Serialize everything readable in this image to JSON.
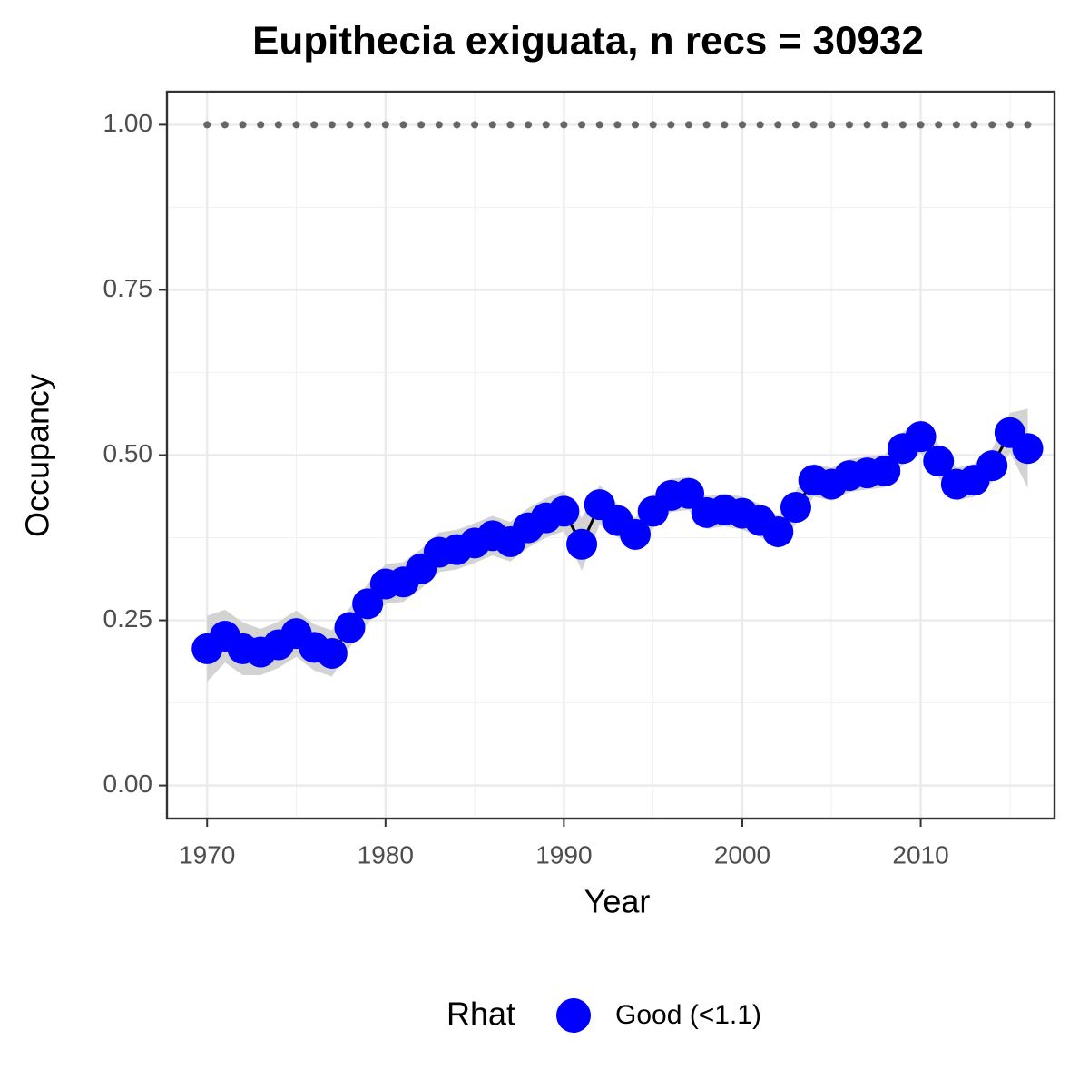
{
  "chart_data": {
    "type": "line",
    "title": "Eupithecia exiguata, n recs = 30932",
    "x_label": "Year",
    "y_label": "Occupancy",
    "legend_title": "Rhat",
    "legend_position": "bottom",
    "x": [
      1970,
      1971,
      1972,
      1973,
      1974,
      1975,
      1976,
      1977,
      1978,
      1979,
      1980,
      1981,
      1982,
      1983,
      1984,
      1985,
      1986,
      1987,
      1988,
      1989,
      1990,
      1991,
      1992,
      1993,
      1994,
      1995,
      1996,
      1997,
      1998,
      1999,
      2000,
      2001,
      2002,
      2003,
      2004,
      2005,
      2006,
      2007,
      2008,
      2009,
      2010,
      2011,
      2012,
      2013,
      2014,
      2015,
      2016
    ],
    "series": [
      {
        "name": "Good (<1.1)",
        "color": "#0000ff",
        "line_color": "#000000",
        "values": [
          0.207,
          0.226,
          0.207,
          0.202,
          0.213,
          0.23,
          0.209,
          0.2,
          0.239,
          0.275,
          0.305,
          0.308,
          0.328,
          0.353,
          0.357,
          0.367,
          0.378,
          0.369,
          0.39,
          0.405,
          0.415,
          0.365,
          0.425,
          0.401,
          0.38,
          0.415,
          0.439,
          0.442,
          0.413,
          0.417,
          0.412,
          0.401,
          0.384,
          0.421,
          0.462,
          0.456,
          0.469,
          0.473,
          0.476,
          0.51,
          0.528,
          0.491,
          0.456,
          0.462,
          0.484,
          0.534,
          0.51
        ],
        "lower": [
          0.157,
          0.186,
          0.167,
          0.167,
          0.178,
          0.195,
          0.174,
          0.165,
          0.209,
          0.245,
          0.275,
          0.278,
          0.298,
          0.323,
          0.327,
          0.337,
          0.348,
          0.339,
          0.36,
          0.375,
          0.385,
          0.325,
          0.395,
          0.376,
          0.355,
          0.39,
          0.414,
          0.417,
          0.388,
          0.392,
          0.387,
          0.376,
          0.359,
          0.396,
          0.437,
          0.431,
          0.444,
          0.448,
          0.451,
          0.485,
          0.503,
          0.466,
          0.431,
          0.437,
          0.459,
          0.504,
          0.45
        ],
        "upper": [
          0.257,
          0.266,
          0.247,
          0.237,
          0.248,
          0.265,
          0.244,
          0.235,
          0.269,
          0.305,
          0.335,
          0.338,
          0.358,
          0.383,
          0.387,
          0.397,
          0.408,
          0.399,
          0.42,
          0.435,
          0.445,
          0.405,
          0.455,
          0.426,
          0.405,
          0.44,
          0.464,
          0.467,
          0.438,
          0.442,
          0.437,
          0.426,
          0.409,
          0.446,
          0.487,
          0.481,
          0.494,
          0.498,
          0.501,
          0.535,
          0.553,
          0.516,
          0.481,
          0.487,
          0.509,
          0.564,
          0.57
        ],
        "band_color": "#d3d3d3"
      }
    ],
    "reference_line": {
      "color": "#666666",
      "values": [
        1,
        1,
        1,
        1,
        1,
        1,
        1,
        1,
        1,
        1,
        1,
        1,
        1,
        1,
        1,
        1,
        1,
        1,
        1,
        1,
        1,
        1,
        1,
        1,
        1,
        1,
        1,
        1,
        1,
        1,
        1,
        1,
        1,
        1,
        1,
        1,
        1,
        1,
        1,
        1,
        1,
        1,
        1,
        1,
        1,
        1,
        1
      ]
    },
    "xlim": [
      1967.75,
      2017.5
    ],
    "ylim": [
      -0.05,
      1.05
    ],
    "xticks": [
      1970,
      1980,
      1990,
      2000,
      2010
    ],
    "yticks": [
      {
        "value": 0,
        "label": "0.00"
      },
      {
        "value": 0.25,
        "label": "0.25"
      },
      {
        "value": 0.5,
        "label": "0.50"
      },
      {
        "value": 0.75,
        "label": "0.75"
      },
      {
        "value": 1,
        "label": "1.00"
      }
    ],
    "minor_xticks": [
      1975,
      1985,
      1995,
      2005,
      2015
    ],
    "minor_yticks": [
      0.125,
      0.375,
      0.625,
      0.875
    ],
    "grid": true
  }
}
